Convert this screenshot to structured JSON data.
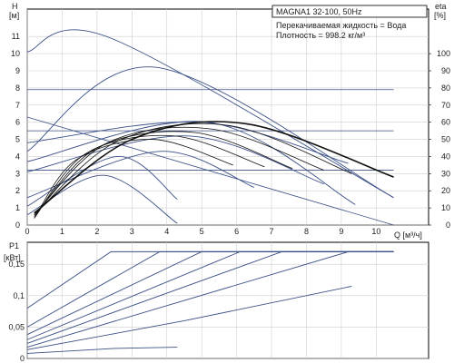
{
  "header": {
    "model": "MAGNA1 32-100, 50Hz",
    "fluid_line": "Перекачиваемая жидкость = Вода",
    "density_line": "Плотность = 998.2 кг/м³"
  },
  "chart_data": [
    {
      "type": "line",
      "ylabel_top": "H",
      "ylabel_unit": "[м]",
      "y2label_top": "eta",
      "y2label_unit": "[%]",
      "xlabel": "Q [м³/ч]",
      "x_ticks": [
        "0",
        "1",
        "2",
        "3",
        "4",
        "5",
        "6",
        "7",
        "8",
        "9",
        "10"
      ],
      "y_ticks": [
        "0",
        "1",
        "2",
        "3",
        "4",
        "5",
        "6",
        "7",
        "8",
        "9",
        "10",
        "11"
      ],
      "y2_ticks": [
        "0",
        "10",
        "20",
        "30",
        "40",
        "50",
        "60",
        "70",
        "80",
        "90",
        "100"
      ],
      "xlim": [
        0,
        11.5
      ],
      "ylim": [
        0,
        12.6
      ],
      "y2lim": [
        0,
        126
      ],
      "colors": {
        "curves": "#3a4f86",
        "eta": "#111111",
        "axis": "#000000"
      },
      "head_curves": [
        {
          "x": [
            0,
            2.4,
            10.5
          ],
          "y": [
            10.1,
            10.9,
            1.6
          ]
        },
        {
          "x": [
            0,
            3.7,
            10.5
          ],
          "y": [
            4.3,
            9.2,
            1.6
          ]
        },
        {
          "x": [
            0,
            5.2,
            9.4
          ],
          "y": [
            3.7,
            6.0,
            1.2
          ]
        },
        {
          "x": [
            0,
            4.6,
            8.5
          ],
          "y": [
            3.1,
            5.2,
            2.4
          ]
        },
        {
          "x": [
            0,
            3.8,
            6.5
          ],
          "y": [
            1.6,
            4.3,
            2.2
          ]
        },
        {
          "x": [
            0,
            2.6,
            4.3
          ],
          "y": [
            1.1,
            4.0,
            1.5
          ]
        },
        {
          "x": [
            0,
            2.2,
            4.3
          ],
          "y": [
            0.6,
            2.9,
            0.1
          ]
        },
        {
          "x": [
            0,
            5.0,
            9.2
          ],
          "y": [
            4.8,
            6.0,
            3.6
          ]
        }
      ],
      "limit_lines": [
        {
          "x": [
            0,
            10.5
          ],
          "y": [
            7.9,
            7.9
          ]
        },
        {
          "x": [
            0,
            10.5
          ],
          "y": [
            5.5,
            5.5
          ]
        },
        {
          "x": [
            0,
            10.5
          ],
          "y": [
            3.2,
            3.2
          ]
        },
        {
          "x": [
            0,
            10.5
          ],
          "y": [
            6.3,
            0.0
          ]
        }
      ],
      "eta_curves": [
        {
          "x": [
            0.2,
            3,
            6.3,
            10.5
          ],
          "y": [
            7,
            50,
            59,
            28
          ]
        },
        {
          "x": [
            0.2,
            2.6,
            5.8,
            9.3
          ],
          "y": [
            6,
            49,
            58,
            30
          ]
        },
        {
          "x": [
            0.2,
            2.3,
            5.3,
            8.5
          ],
          "y": [
            6,
            48,
            56,
            32
          ]
        },
        {
          "x": [
            0.2,
            2.0,
            4.8,
            7.6
          ],
          "y": [
            5,
            45,
            54,
            33
          ]
        },
        {
          "x": [
            0.2,
            1.7,
            4.2,
            6.8
          ],
          "y": [
            4,
            42,
            52,
            34
          ]
        },
        {
          "x": [
            0.2,
            1.4,
            3.6,
            5.9
          ],
          "y": [
            4,
            38,
            50,
            35
          ]
        }
      ]
    },
    {
      "type": "line",
      "ylabel_top": "P1",
      "ylabel_unit": "[кВт]",
      "y_ticks": [
        "0",
        "0,05",
        "0,1",
        "0,15"
      ],
      "ylim": [
        0,
        0.185
      ],
      "xlim": [
        0,
        11.5
      ],
      "power_curves": [
        {
          "x": [
            0,
            2.4,
            10.5
          ],
          "y": [
            0.08,
            0.17,
            0.17
          ]
        },
        {
          "x": [
            0,
            3.8,
            10.5
          ],
          "y": [
            0.05,
            0.17,
            0.17
          ]
        },
        {
          "x": [
            0,
            5.0,
            10.5
          ],
          "y": [
            0.038,
            0.17,
            0.17
          ]
        },
        {
          "x": [
            0,
            6.1,
            10.5
          ],
          "y": [
            0.03,
            0.17,
            0.17
          ]
        },
        {
          "x": [
            0,
            7.3,
            10.5
          ],
          "y": [
            0.024,
            0.17,
            0.17
          ]
        },
        {
          "x": [
            0,
            9.2,
            10.5
          ],
          "y": [
            0.018,
            0.17,
            0.17
          ]
        },
        {
          "x": [
            0,
            4.5,
            9.3
          ],
          "y": [
            0.014,
            0.06,
            0.115
          ]
        },
        {
          "x": [
            0,
            2.5,
            4.3
          ],
          "y": [
            0.008,
            0.016,
            0.018
          ]
        }
      ]
    }
  ]
}
